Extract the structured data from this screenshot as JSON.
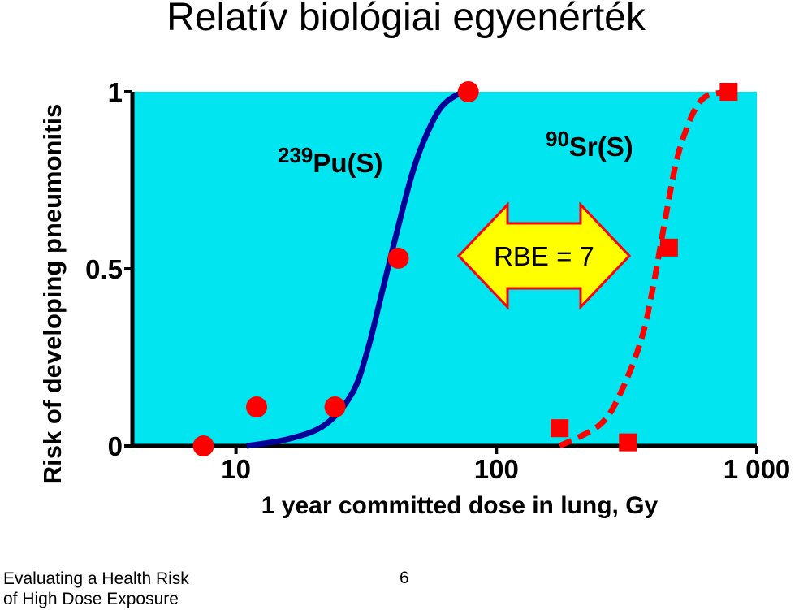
{
  "slide": {
    "title": "Relatív biológiai egyenérték",
    "footer_line1": "Evaluating a Health Risk",
    "footer_line2": "of High Dose Exposure",
    "page_number": "6"
  },
  "colors": {
    "plot_background": "#00e5f0",
    "pu_curve": "#000099",
    "sr_curve": "#ff0000",
    "markers": "#ff0000",
    "arrow_fill": "#ffff00",
    "arrow_stroke": "#ff0000"
  },
  "chart_data": {
    "type": "scatter",
    "xlabel": "1 year committed dose in lung, Gy",
    "ylabel": "Risk of developing pneumonitis",
    "x_scale": "log",
    "xlim": [
      4,
      1000
    ],
    "ylim": [
      0,
      1
    ],
    "x_ticks": [
      10,
      100,
      1000
    ],
    "x_tick_labels": [
      "10",
      "100",
      "1 000"
    ],
    "y_ticks": [
      0,
      0.5,
      1
    ],
    "y_tick_labels": [
      "0",
      "0.5",
      "1"
    ],
    "grid": false,
    "annotations": {
      "pu_label_superscript": "239",
      "pu_label": "Pu(S)",
      "sr_label_superscript": "90",
      "sr_label": "Sr(S)",
      "rbe_label": "RBE = 7"
    },
    "series": [
      {
        "marker": "circle",
        "curve_style": "solid",
        "points": [
          [
            7.5,
            0.0
          ],
          [
            12,
            0.11
          ],
          [
            24,
            0.11
          ],
          [
            42,
            0.53
          ],
          [
            78,
            1.0
          ]
        ],
        "fit": {
          "x": [
            11,
            16,
            22,
            28,
            32,
            36,
            42,
            48,
            54,
            62,
            75,
            85
          ],
          "y": [
            0.0,
            0.02,
            0.06,
            0.15,
            0.27,
            0.42,
            0.62,
            0.78,
            0.88,
            0.96,
            1.0,
            1.0
          ]
        }
      },
      {
        "marker": "square",
        "curve_style": "dashed",
        "points": [
          [
            175,
            0.05
          ],
          [
            320,
            0.01
          ],
          [
            460,
            0.56
          ],
          [
            780,
            1.0
          ]
        ],
        "fit": {
          "x": [
            175,
            250,
            300,
            360,
            400,
            440,
            490,
            540,
            590,
            650,
            780
          ],
          "y": [
            0.0,
            0.06,
            0.15,
            0.3,
            0.45,
            0.62,
            0.8,
            0.9,
            0.96,
            0.99,
            1.0
          ]
        }
      }
    ]
  }
}
